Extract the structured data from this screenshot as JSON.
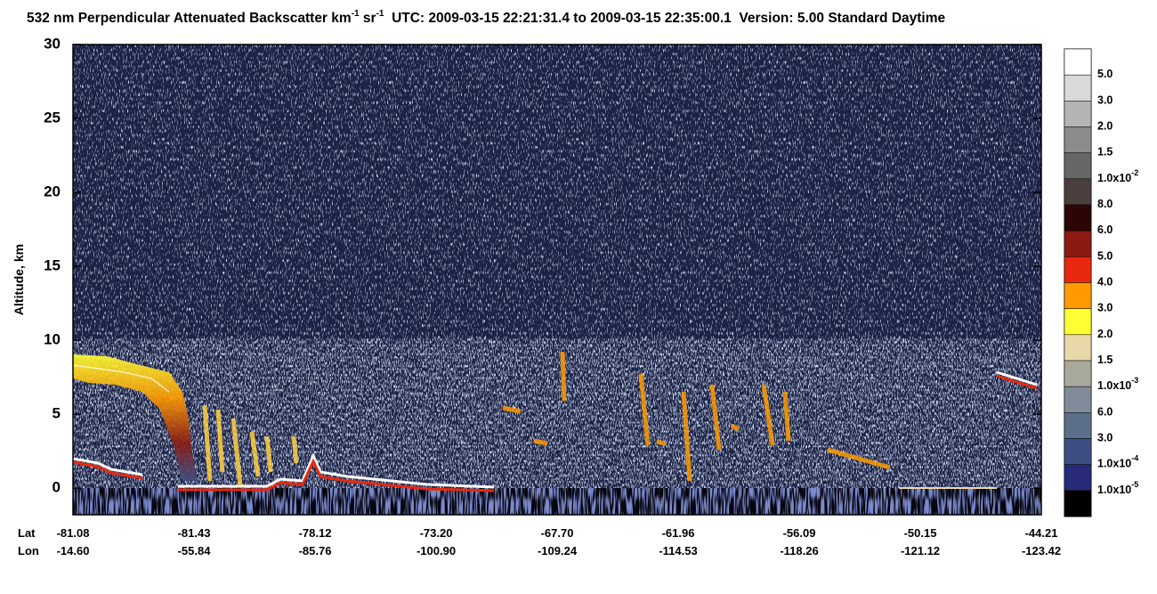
{
  "chart_data": {
    "type": "heatmap",
    "title_parts": [
      {
        "text": "532 nm Perpendicular Attenuated Backscatter km"
      },
      {
        "text": "-1",
        "sup": true
      },
      {
        "text": " sr"
      },
      {
        "text": "-1",
        "sup": true
      },
      {
        "text": "  UTC: 2009-03-15 22:21:31.4 to 2009-03-15 22:35:00.1  Version: 5.00 Standard Daytime"
      }
    ],
    "y_label": "Altitude, km",
    "ylim": [
      -1.8,
      30
    ],
    "yticks": [
      0,
      5,
      10,
      15,
      20,
      25,
      30
    ],
    "x_row_names": [
      "Lat",
      "Lon"
    ],
    "lat": [
      "-81.08",
      "-81.43",
      "-78.12",
      "-73.20",
      "-67.70",
      "-61.96",
      "-56.09",
      "-50.15",
      "-44.21"
    ],
    "lon": [
      "-14.60",
      "-55.84",
      "-85.76",
      "-100.90",
      "-109.24",
      "-114.53",
      "-118.26",
      "-121.12",
      "-123.42"
    ],
    "colorbar": {
      "colors": [
        "#ffffff",
        "#d9d9d9",
        "#b4b4b4",
        "#8c8c8c",
        "#666666",
        "#4a3f3c",
        "#2e0505",
        "#8c1a12",
        "#e8280f",
        "#ff9a00",
        "#ffff33",
        "#e8d8aa",
        "#a8a89c",
        "#808c99",
        "#5b6f8c",
        "#3d4f82",
        "#262a78",
        "#000000"
      ],
      "labels": [
        {
          "text": "5.0"
        },
        {
          "text": "3.0"
        },
        {
          "text": "2.0"
        },
        {
          "text": "1.5"
        },
        {
          "text": "1.0x10",
          "sup": "-2"
        },
        {
          "text": "8.0"
        },
        {
          "text": "6.0"
        },
        {
          "text": "5.0"
        },
        {
          "text": "4.0"
        },
        {
          "text": "3.0"
        },
        {
          "text": "2.0"
        },
        {
          "text": "1.5"
        },
        {
          "text": "1.0x10",
          "sup": "-3"
        },
        {
          "text": "6.0"
        },
        {
          "text": "3.0"
        },
        {
          "text": "1.0x10",
          "sup": "-4"
        },
        {
          "text": "1.0x10",
          "sup": "-5"
        }
      ]
    }
  }
}
